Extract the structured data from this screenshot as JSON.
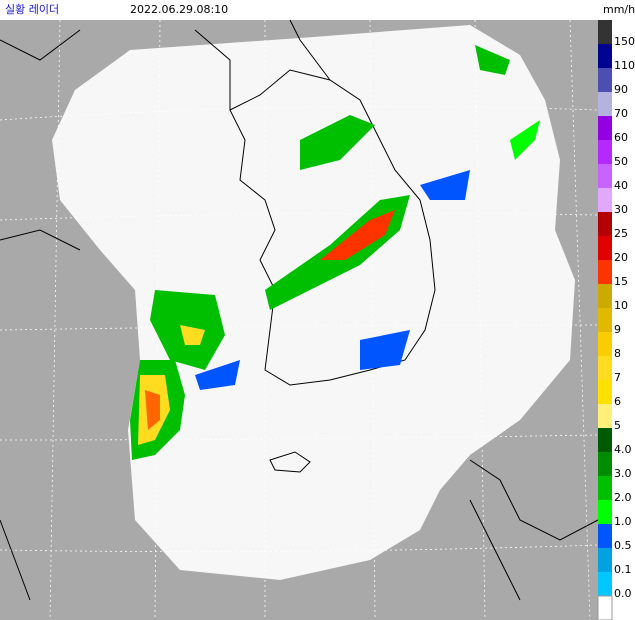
{
  "header": {
    "title": "실황 레이더",
    "time": "2022.06.29.08:10",
    "unit": "mm/h"
  },
  "legend": {
    "items": [
      {
        "label": "150",
        "color": "#333333"
      },
      {
        "label": "110",
        "color": "#000390"
      },
      {
        "label": "90",
        "color": "#4c4eb1"
      },
      {
        "label": "70",
        "color": "#b3b4de"
      },
      {
        "label": "60",
        "color": "#9300e4"
      },
      {
        "label": "50",
        "color": "#b329ff"
      },
      {
        "label": "40",
        "color": "#c963ff"
      },
      {
        "label": "30",
        "color": "#e0a9ff"
      },
      {
        "label": "25",
        "color": "#b40000"
      },
      {
        "label": "20",
        "color": "#e10000"
      },
      {
        "label": "15",
        "color": "#ff3300"
      },
      {
        "label": "10",
        "color": "#ccaa00"
      },
      {
        "label": "9",
        "color": "#e0b900"
      },
      {
        "label": "8",
        "color": "#f9cd00"
      },
      {
        "label": "7",
        "color": "#ffdc1f"
      },
      {
        "label": "6",
        "color": "#ffe100"
      },
      {
        "label": "5",
        "color": "#fff07a"
      },
      {
        "label": "4.0",
        "color": "#005a00"
      },
      {
        "label": "3.0",
        "color": "#008c00"
      },
      {
        "label": "2.0",
        "color": "#00be00"
      },
      {
        "label": "1.0",
        "color": "#00ff00"
      },
      {
        "label": "0.5",
        "color": "#0055ff"
      },
      {
        "label": "0.1",
        "color": "#00a3e0"
      },
      {
        "label": "0.0",
        "color": "#00c8ff"
      }
    ],
    "base_color": "#ffffff"
  }
}
